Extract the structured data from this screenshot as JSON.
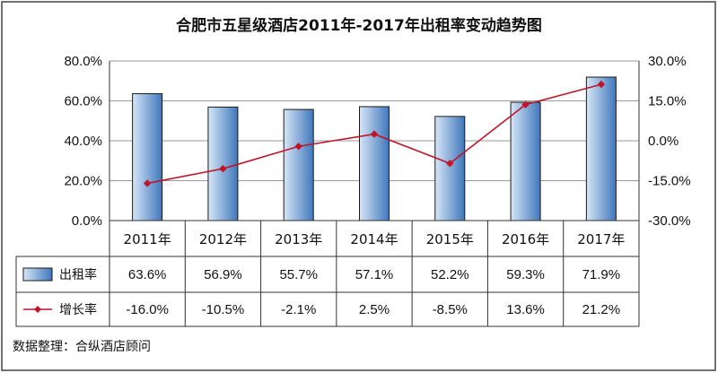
{
  "chart_data": {
    "type": "bar",
    "title": "合肥市五星级酒店2011年-2017年出租率变动趋势图",
    "categories": [
      "2011年",
      "2012年",
      "2013年",
      "2014年",
      "2015年",
      "2016年",
      "2017年"
    ],
    "series": [
      {
        "name": "出租率",
        "kind": "bar",
        "axis": "left",
        "values": [
          63.6,
          56.9,
          55.7,
          57.1,
          52.2,
          59.3,
          71.9
        ],
        "labels": [
          "63.6%",
          "56.9%",
          "55.7%",
          "57.1%",
          "52.2%",
          "59.3%",
          "71.9%"
        ]
      },
      {
        "name": "增长率",
        "kind": "line",
        "axis": "right",
        "values": [
          -16.0,
          -10.5,
          -2.1,
          2.5,
          -8.5,
          13.6,
          21.2
        ],
        "labels": [
          "-16.0%",
          "-10.5%",
          "-2.1%",
          "2.5%",
          "-8.5%",
          "13.6%",
          "21.2%"
        ]
      }
    ],
    "yleft": {
      "min": 0,
      "max": 80,
      "ticks": [
        "0.0%",
        "20.0%",
        "40.0%",
        "60.0%",
        "80.0%"
      ],
      "tick_values": [
        0,
        20,
        40,
        60,
        80
      ]
    },
    "yright": {
      "min": -30,
      "max": 30,
      "ticks": [
        "-30.0%",
        "-15.0%",
        "0.0%",
        "15.0%",
        "30.0%"
      ],
      "tick_values": [
        -30,
        -15,
        0,
        15,
        30
      ]
    },
    "grid": "horizontal",
    "legend": "data-table"
  },
  "source_note": "数据整理：合纵酒店顾问",
  "colors": {
    "bar_light": "#d6e6f7",
    "bar_dark": "#3f77bb",
    "bar_edge": "#1a1a1a",
    "line": "#c0142a",
    "grid": "#9a9a9a"
  }
}
